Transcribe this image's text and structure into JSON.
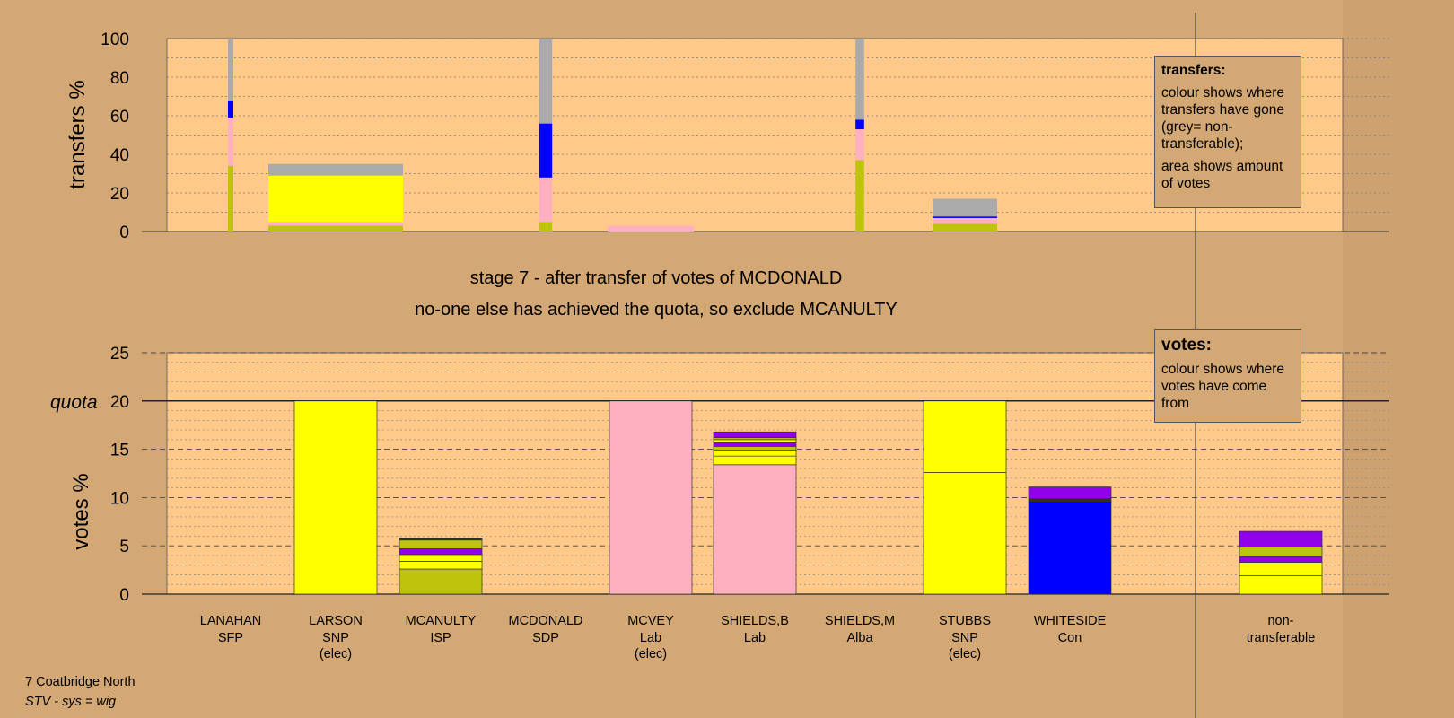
{
  "stage": {
    "line1": "stage 7 - after transfer of votes of MCDONALD",
    "line2": "no-one else has achieved the quota, so exclude MCANULTY"
  },
  "footer": {
    "constituency": "7 Coatbridge North",
    "system": "STV - sys = wig"
  },
  "legends": {
    "transfers": {
      "title": "transfers:",
      "p1": "colour shows where transfers have gone (grey= non-transferable);",
      "p2": "area shows amount of votes"
    },
    "votes": {
      "title": "votes:",
      "p1": "colour shows where votes have come from"
    }
  },
  "colors": {
    "background": "#d4a874",
    "plot_bg": "#ffc98a",
    "SNP": "#ffff00",
    "ISP": "#bec30c",
    "Lab": "#ffb0c0",
    "Con": "#0000ff",
    "Alba": "#9000e8",
    "SDP": "#2e2e2e",
    "non-transferable": "#aaaaaa"
  },
  "chart_data": [
    {
      "type": "bar",
      "stacked": true,
      "ylabel": "transfers %",
      "ylim": [
        0,
        100
      ],
      "yticks": [
        0,
        20,
        40,
        60,
        80,
        100
      ],
      "grid": "dotted every 10",
      "bars": [
        {
          "candidate": "LANAHAN",
          "width_votes": 0.4,
          "segments": [
            {
              "party": "ISP",
              "value": 34
            },
            {
              "party": "Lab",
              "value": 25
            },
            {
              "party": "Con",
              "value": 9
            },
            {
              "party": "non-transferable",
              "value": 32
            }
          ]
        },
        {
          "candidate": "LARSON",
          "width_votes": 12.5,
          "segments": [
            {
              "party": "ISP",
              "value": 3
            },
            {
              "party": "Lab",
              "value": 2
            },
            {
              "party": "SNP",
              "value": 24
            },
            {
              "party": "non-transferable",
              "value": 6
            }
          ]
        },
        {
          "candidate": "MCDONALD",
          "width_votes": 1.2,
          "segments": [
            {
              "party": "ISP",
              "value": 5
            },
            {
              "party": "Lab",
              "value": 23
            },
            {
              "party": "Con",
              "value": 28
            },
            {
              "party": "non-transferable",
              "value": 44
            }
          ]
        },
        {
          "candidate": "MCVEY",
          "width_votes": 8.0,
          "segments": [
            {
              "party": "Lab",
              "value": 3
            }
          ]
        },
        {
          "candidate": "SHIELDS,M",
          "width_votes": 0.8,
          "segments": [
            {
              "party": "ISP",
              "value": 37
            },
            {
              "party": "Lab",
              "value": 16
            },
            {
              "party": "Con",
              "value": 5
            },
            {
              "party": "non-transferable",
              "value": 42
            }
          ]
        },
        {
          "candidate": "STUBBS",
          "width_votes": 6.0,
          "segments": [
            {
              "party": "ISP",
              "value": 4
            },
            {
              "party": "Lab",
              "value": 3
            },
            {
              "party": "Con",
              "value": 0.5
            },
            {
              "party": "Alba",
              "value": 0.5
            },
            {
              "party": "non-transferable",
              "value": 9
            }
          ]
        }
      ]
    },
    {
      "type": "bar",
      "stacked": true,
      "ylabel": "votes %",
      "ylim": [
        0,
        25
      ],
      "yticks": [
        0,
        5,
        10,
        15,
        20,
        25
      ],
      "quota": 20,
      "quota_label": "quota",
      "grid": "dotted every 1, dashed every 5",
      "candidates": [
        {
          "name": "LANAHAN",
          "party": "SFP",
          "elected": "",
          "segments": []
        },
        {
          "name": "LARSON",
          "party": "SNP",
          "elected": "(elec)",
          "segments": [
            {
              "party": "SNP",
              "value": 20
            }
          ]
        },
        {
          "name": "MCANULTY",
          "party": "ISP",
          "elected": "",
          "segments": [
            {
              "party": "ISP",
              "value": 2.6
            },
            {
              "party": "SNP",
              "value": 0.8
            },
            {
              "party": "SNP",
              "value": 0.7
            },
            {
              "party": "Alba",
              "value": 0.6
            },
            {
              "party": "ISP",
              "value": 0.9
            },
            {
              "party": "SDP",
              "value": 0.2
            }
          ]
        },
        {
          "name": "MCDONALD",
          "party": "SDP",
          "elected": "",
          "segments": []
        },
        {
          "name": "MCVEY",
          "party": "Lab",
          "elected": "(elec)",
          "segments": [
            {
              "party": "Lab",
              "value": 20
            }
          ]
        },
        {
          "name": "SHIELDS,B",
          "party": "Lab",
          "elected": "",
          "segments": [
            {
              "party": "Lab",
              "value": 13.4
            },
            {
              "party": "SNP",
              "value": 0.9
            },
            {
              "party": "SNP",
              "value": 0.6
            },
            {
              "party": "ISP",
              "value": 0.4
            },
            {
              "party": "Alba",
              "value": 0.4
            },
            {
              "party": "SNP",
              "value": 0.3
            },
            {
              "party": "ISP",
              "value": 0.2
            },
            {
              "party": "Alba",
              "value": 0.6
            }
          ]
        },
        {
          "name": "SHIELDS,M",
          "party": "Alba",
          "elected": "",
          "segments": []
        },
        {
          "name": "STUBBS",
          "party": "SNP",
          "elected": "(elec)",
          "segments": [
            {
              "party": "SNP",
              "value": 12.6
            },
            {
              "party": "SNP",
              "value": 7.4
            }
          ]
        },
        {
          "name": "WHITESIDE",
          "party": "Con",
          "elected": "",
          "segments": [
            {
              "party": "Con",
              "value": 9.6
            },
            {
              "party": "SDP",
              "value": 0.3
            },
            {
              "party": "Alba",
              "value": 1.2
            }
          ]
        }
      ],
      "nontransferable": {
        "label1": "non-",
        "label2": "transferable",
        "segments": [
          {
            "party": "SNP",
            "value": 1.9
          },
          {
            "party": "SNP",
            "value": 1.4
          },
          {
            "party": "Alba",
            "value": 0.6
          },
          {
            "party": "ISP",
            "value": 1.0
          },
          {
            "party": "Alba",
            "value": 1.6
          }
        ]
      }
    }
  ]
}
